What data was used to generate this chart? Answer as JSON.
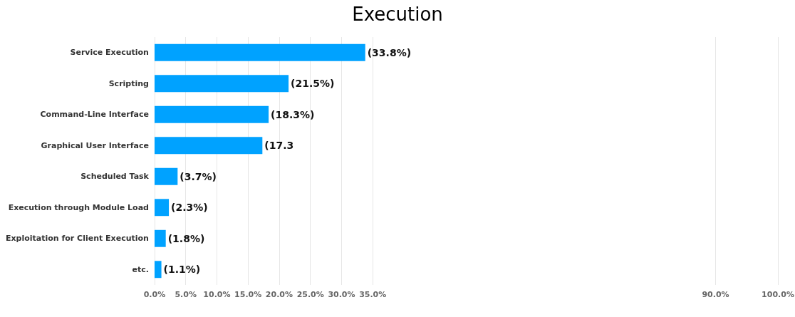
{
  "chart_data": {
    "type": "bar",
    "orientation": "horizontal",
    "title": "Execution",
    "categories": [
      "Service Execution",
      "Scripting",
      "Command-Line Interface",
      "Graphical User Interface",
      "Scheduled Task",
      "Execution through Module Load",
      "Exploitation for Client Execution",
      "etc."
    ],
    "values": [
      33.8,
      21.5,
      18.3,
      17.3,
      3.7,
      2.3,
      1.8,
      1.1
    ],
    "value_labels": [
      "(33.8%)",
      "(21.5%)",
      "(18.3%)",
      "(17.3",
      "(3.7%)",
      "(2.3%)",
      "(1.8%)",
      "(1.1%)"
    ],
    "color": "#00a2ff",
    "xlim": [
      0,
      100
    ],
    "xticks": [
      {
        "value": 0,
        "label": "0.0%"
      },
      {
        "value": 5,
        "label": "5.0%"
      },
      {
        "value": 10,
        "label": "10.0%"
      },
      {
        "value": 15,
        "label": "15.0%"
      },
      {
        "value": 20,
        "label": "20.0%"
      },
      {
        "value": 25,
        "label": "25.0%"
      },
      {
        "value": 30,
        "label": "30.0%"
      },
      {
        "value": 35,
        "label": "35.0%"
      },
      {
        "value": 90,
        "label": "90.0%"
      },
      {
        "value": 100,
        "label": "100.0%"
      }
    ],
    "grid": "x"
  }
}
